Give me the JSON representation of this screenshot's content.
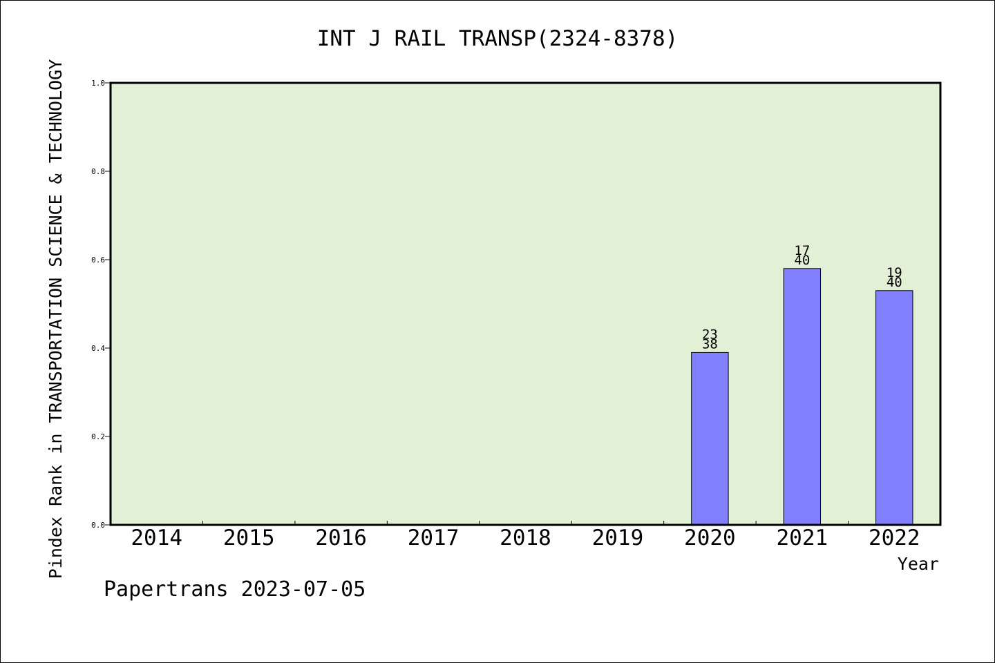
{
  "chart_data": {
    "type": "bar",
    "title": "INT J RAIL TRANSP(2324-8378)",
    "xlabel": "Year",
    "ylabel": "Pindex Rank in TRANSPORTATION SCIENCE & TECHNOLOGY",
    "categories": [
      "2014",
      "2015",
      "2016",
      "2017",
      "2018",
      "2019",
      "2020",
      "2021",
      "2022"
    ],
    "values": [
      null,
      null,
      null,
      null,
      null,
      null,
      0.39,
      0.58,
      0.53
    ],
    "rank_labels": [
      null,
      null,
      null,
      null,
      null,
      null,
      {
        "rank": "23",
        "total": "38"
      },
      {
        "rank": "17",
        "total": "40"
      },
      {
        "rank": "19",
        "total": "40"
      }
    ],
    "ylim": [
      0,
      1.0
    ],
    "yticks": [
      "0.0",
      "0.2",
      "0.4",
      "0.6",
      "0.8",
      "1.0"
    ],
    "grid": false,
    "legend": "none"
  },
  "footer": {
    "credit": "Papertrans 2023-07-05"
  },
  "colors": {
    "plot_background": "#e2f0d6",
    "bar_fill": "#8080ff",
    "axis": "#000000"
  }
}
